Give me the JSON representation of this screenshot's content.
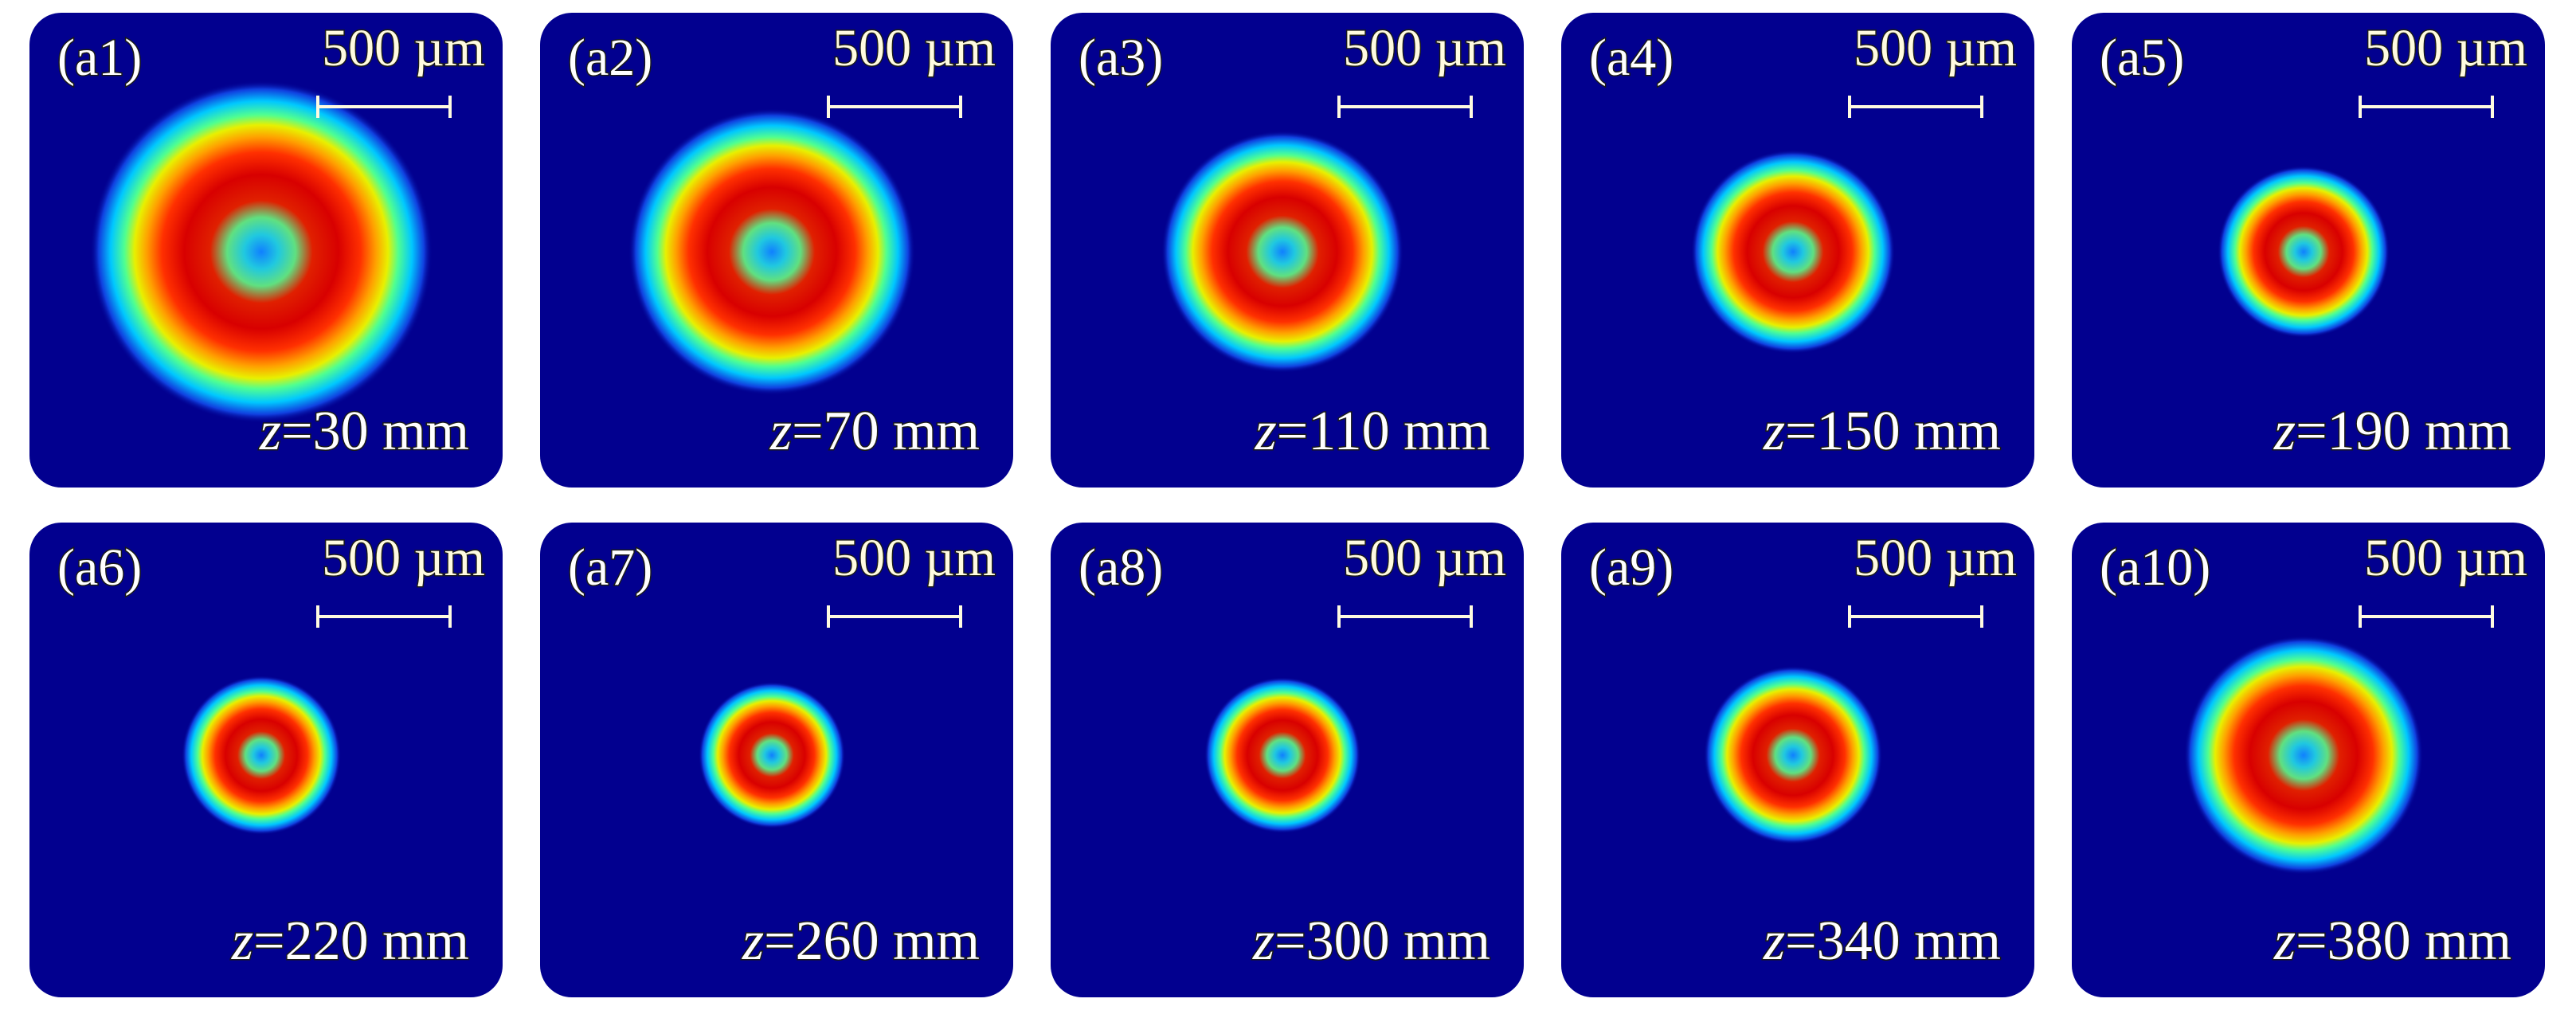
{
  "panels": [
    {
      "label": "(a1)",
      "scale": "500 µm",
      "variable": "z",
      "position": "=30 mm"
    },
    {
      "label": "(a2)",
      "scale": "500 µm",
      "variable": "z",
      "position": "=70 mm"
    },
    {
      "label": "(a3)",
      "scale": "500 µm",
      "variable": "z",
      "position": "=110 mm"
    },
    {
      "label": "(a4)",
      "scale": "500 µm",
      "variable": "z",
      "position": "=150 mm"
    },
    {
      "label": "(a5)",
      "scale": "500 µm",
      "variable": "z",
      "position": "=190 mm"
    },
    {
      "label": "(a6)",
      "scale": "500 µm",
      "variable": "z",
      "position": "=220 mm"
    },
    {
      "label": "(a7)",
      "scale": "500 µm",
      "variable": "z",
      "position": "=260 mm"
    },
    {
      "label": "(a8)",
      "scale": "500 µm",
      "variable": "z",
      "position": "=300 mm"
    },
    {
      "label": "(a9)",
      "scale": "500 µm",
      "variable": "z",
      "position": "=340 mm"
    },
    {
      "label": "(a10)",
      "scale": "500 µm",
      "variable": "z",
      "position": "=380 mm"
    }
  ]
}
